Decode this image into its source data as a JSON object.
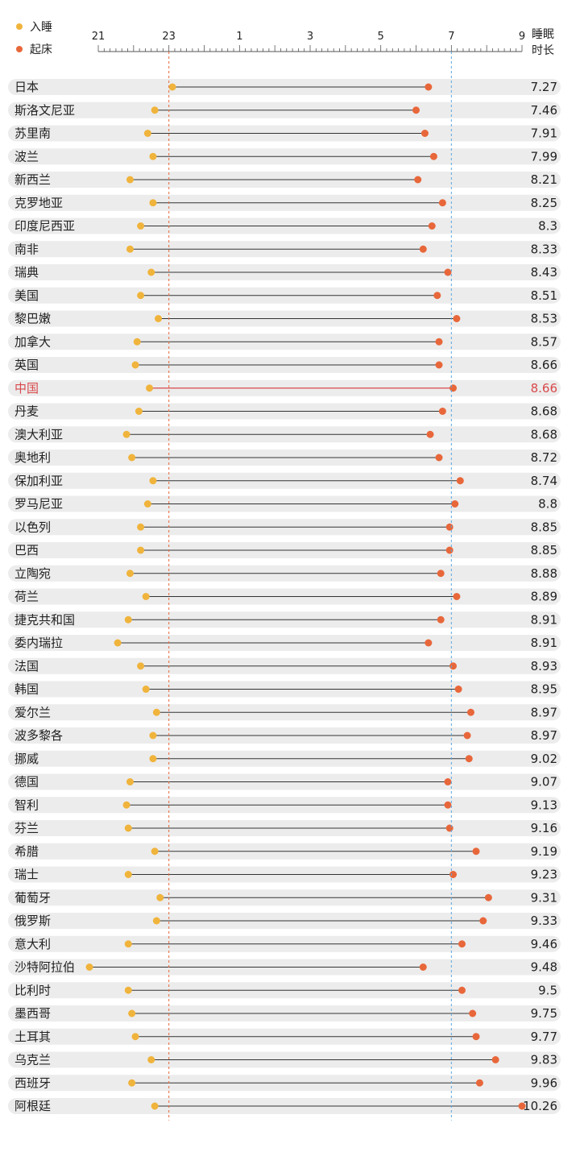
{
  "chart_data": {
    "type": "dumbbell",
    "legend": [
      {
        "label": "入睡",
        "color": "#f0b43c"
      },
      {
        "label": "起床",
        "color": "#e8673a"
      }
    ],
    "value_header_lines": [
      "睡眠",
      "时长"
    ],
    "x_ticks": [
      {
        "value": 21,
        "label": "21"
      },
      {
        "value": 23,
        "label": "23"
      },
      {
        "value": 25,
        "label": "1"
      },
      {
        "value": 27,
        "label": "3"
      },
      {
        "value": 29,
        "label": "5"
      },
      {
        "value": 31,
        "label": "7"
      },
      {
        "value": 33,
        "label": "9"
      }
    ],
    "xlim": [
      21,
      33
    ],
    "reference_lines": [
      {
        "value": 23,
        "color": "#e8673a"
      },
      {
        "value": 31,
        "color": "#5aa6e0"
      }
    ],
    "highlight_color": "#d9484b",
    "rows": [
      {
        "country": "日本",
        "sleep": 23.1,
        "wake": 30.35,
        "duration": "7.27"
      },
      {
        "country": "斯洛文尼亚",
        "sleep": 22.6,
        "wake": 30.0,
        "duration": "7.46"
      },
      {
        "country": "苏里南",
        "sleep": 22.4,
        "wake": 30.25,
        "duration": "7.91"
      },
      {
        "country": "波兰",
        "sleep": 22.55,
        "wake": 30.5,
        "duration": "7.99"
      },
      {
        "country": "新西兰",
        "sleep": 21.9,
        "wake": 30.05,
        "duration": "8.21"
      },
      {
        "country": "克罗地亚",
        "sleep": 22.55,
        "wake": 30.75,
        "duration": "8.25"
      },
      {
        "country": "印度尼西亚",
        "sleep": 22.2,
        "wake": 30.45,
        "duration": "8.3"
      },
      {
        "country": "南非",
        "sleep": 21.9,
        "wake": 30.2,
        "duration": "8.33"
      },
      {
        "country": "瑞典",
        "sleep": 22.5,
        "wake": 30.9,
        "duration": "8.43"
      },
      {
        "country": "美国",
        "sleep": 22.2,
        "wake": 30.6,
        "duration": "8.51"
      },
      {
        "country": "黎巴嫩",
        "sleep": 22.7,
        "wake": 31.15,
        "duration": "8.53"
      },
      {
        "country": "加拿大",
        "sleep": 22.1,
        "wake": 30.65,
        "duration": "8.57"
      },
      {
        "country": "英国",
        "sleep": 22.05,
        "wake": 30.65,
        "duration": "8.66"
      },
      {
        "country": "中国",
        "sleep": 22.45,
        "wake": 31.05,
        "duration": "8.66",
        "highlight": true
      },
      {
        "country": "丹麦",
        "sleep": 22.15,
        "wake": 30.75,
        "duration": "8.68"
      },
      {
        "country": "澳大利亚",
        "sleep": 21.8,
        "wake": 30.4,
        "duration": "8.68"
      },
      {
        "country": "奥地利",
        "sleep": 21.95,
        "wake": 30.65,
        "duration": "8.72"
      },
      {
        "country": "保加利亚",
        "sleep": 22.55,
        "wake": 31.25,
        "duration": "8.74"
      },
      {
        "country": "罗马尼亚",
        "sleep": 22.4,
        "wake": 31.1,
        "duration": "8.8"
      },
      {
        "country": "以色列",
        "sleep": 22.2,
        "wake": 30.95,
        "duration": "8.85"
      },
      {
        "country": "巴西",
        "sleep": 22.2,
        "wake": 30.95,
        "duration": "8.85"
      },
      {
        "country": "立陶宛",
        "sleep": 21.9,
        "wake": 30.7,
        "duration": "8.88"
      },
      {
        "country": "荷兰",
        "sleep": 22.35,
        "wake": 31.15,
        "duration": "8.89"
      },
      {
        "country": "捷克共和国",
        "sleep": 21.85,
        "wake": 30.7,
        "duration": "8.91"
      },
      {
        "country": "委内瑞拉",
        "sleep": 21.55,
        "wake": 30.35,
        "duration": "8.91"
      },
      {
        "country": "法国",
        "sleep": 22.2,
        "wake": 31.05,
        "duration": "8.93"
      },
      {
        "country": "韩国",
        "sleep": 22.35,
        "wake": 31.2,
        "duration": "8.95"
      },
      {
        "country": "爱尔兰",
        "sleep": 22.65,
        "wake": 31.55,
        "duration": "8.97"
      },
      {
        "country": "波多黎各",
        "sleep": 22.55,
        "wake": 31.45,
        "duration": "8.97"
      },
      {
        "country": "挪威",
        "sleep": 22.55,
        "wake": 31.5,
        "duration": "9.02"
      },
      {
        "country": "德国",
        "sleep": 21.9,
        "wake": 30.9,
        "duration": "9.07"
      },
      {
        "country": "智利",
        "sleep": 21.8,
        "wake": 30.9,
        "duration": "9.13"
      },
      {
        "country": "芬兰",
        "sleep": 21.85,
        "wake": 30.95,
        "duration": "9.16"
      },
      {
        "country": "希腊",
        "sleep": 22.6,
        "wake": 31.7,
        "duration": "9.19"
      },
      {
        "country": "瑞士",
        "sleep": 21.85,
        "wake": 31.05,
        "duration": "9.23"
      },
      {
        "country": "葡萄牙",
        "sleep": 22.75,
        "wake": 32.05,
        "duration": "9.31"
      },
      {
        "country": "俄罗斯",
        "sleep": 22.65,
        "wake": 31.9,
        "duration": "9.33"
      },
      {
        "country": "意大利",
        "sleep": 21.85,
        "wake": 31.3,
        "duration": "9.46"
      },
      {
        "country": "沙特阿拉伯",
        "sleep": 20.75,
        "wake": 30.2,
        "duration": "9.48"
      },
      {
        "country": "比利时",
        "sleep": 21.85,
        "wake": 31.3,
        "duration": "9.5"
      },
      {
        "country": "墨西哥",
        "sleep": 21.95,
        "wake": 31.6,
        "duration": "9.75"
      },
      {
        "country": "土耳其",
        "sleep": 22.05,
        "wake": 31.7,
        "duration": "9.77"
      },
      {
        "country": "乌克兰",
        "sleep": 22.5,
        "wake": 32.25,
        "duration": "9.83"
      },
      {
        "country": "西班牙",
        "sleep": 21.95,
        "wake": 31.8,
        "duration": "9.96"
      },
      {
        "country": "阿根廷",
        "sleep": 22.6,
        "wake": 33.0,
        "duration": "10.26"
      }
    ]
  }
}
